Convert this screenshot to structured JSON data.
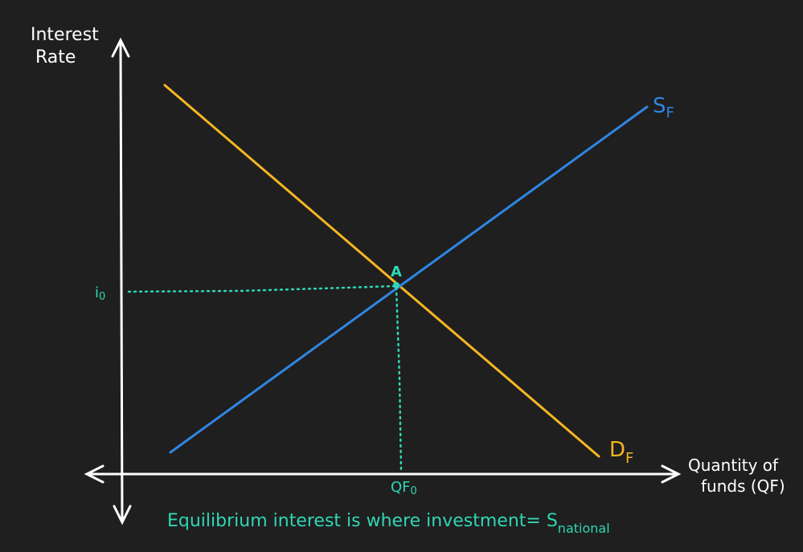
{
  "colors": {
    "background": "#1f1f1f",
    "axis": "#ffffff",
    "supply": "#2f86e3",
    "demand": "#f5b622",
    "equilibrium": "#2fd6b4"
  },
  "axes": {
    "y_label_line1": "Interest",
    "y_label_line2": "Rate",
    "x_label_line1": "Quantity of",
    "x_label_line2": "funds (QF)"
  },
  "curves": {
    "supply_label_main": "S",
    "supply_label_sub": "F",
    "demand_label_main": "D",
    "demand_label_sub": "F"
  },
  "equilibrium": {
    "point_label": "A",
    "rate_label_main": "i",
    "rate_label_sub": "0",
    "quantity_label_main": "QF",
    "quantity_label_sub": "0"
  },
  "caption": {
    "text_main": "Equilibrium interest is where investment= S",
    "text_sub": "national"
  }
}
